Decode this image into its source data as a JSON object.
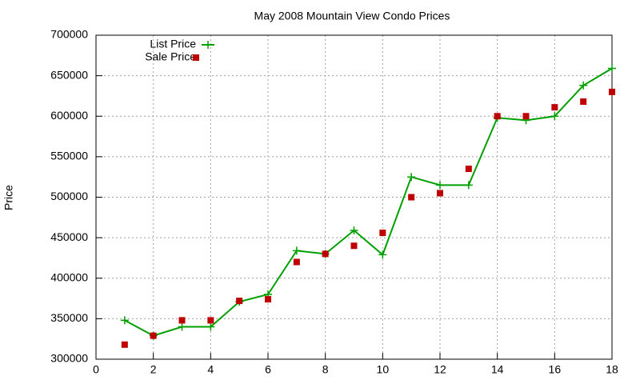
{
  "chart_data": {
    "type": "line",
    "title": "May 2008 Mountain View Condo Prices",
    "y_label": "Price",
    "x": [
      1,
      2,
      3,
      4,
      5,
      6,
      7,
      8,
      9,
      10,
      11,
      12,
      13,
      14,
      15,
      16,
      17,
      18
    ],
    "series": [
      {
        "name": "List Price",
        "color": "#00a000",
        "style": "linespoints",
        "values": [
          348000,
          329000,
          340000,
          340000,
          371000,
          380000,
          434000,
          430000,
          459000,
          429000,
          525000,
          515000,
          515000,
          598000,
          595000,
          600000,
          638000,
          659000
        ]
      },
      {
        "name": "Sale Price",
        "color": "#c00000",
        "style": "points",
        "values": [
          318000,
          329000,
          348000,
          348000,
          372000,
          374000,
          420000,
          430000,
          440000,
          456000,
          500000,
          505000,
          535000,
          600000,
          600000,
          611000,
          618000,
          630000
        ]
      }
    ],
    "xlim": [
      0,
      18
    ],
    "xticks": [
      0,
      2,
      4,
      6,
      8,
      10,
      12,
      14,
      16,
      18
    ],
    "ylim": [
      300000,
      700000
    ],
    "yticks": [
      300000,
      350000,
      400000,
      450000,
      500000,
      550000,
      600000,
      650000,
      700000
    ],
    "grid": true,
    "legend": "top-left"
  }
}
